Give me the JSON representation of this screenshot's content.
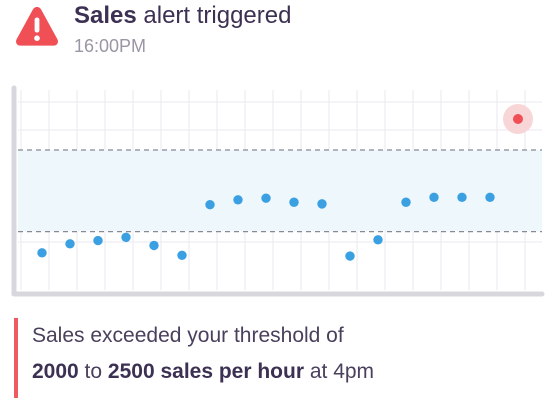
{
  "alert": {
    "title_strong": "Sales",
    "title_rest": " alert triggered",
    "time": "16:00PM",
    "icon": "warning-triangle-icon",
    "icon_color": "#ef4f55"
  },
  "chart_data": {
    "type": "scatter",
    "threshold_min": 2000,
    "threshold_max": 2500,
    "unit": "sales per hour",
    "values": [
      1870,
      1925,
      1945,
      1965,
      1915,
      1855,
      2165,
      2195,
      2205,
      2180,
      2170,
      1850,
      1950,
      2180,
      2210,
      2210,
      2210,
      2690
    ],
    "alert_index": 17,
    "ylim": [
      1630,
      2880
    ],
    "grid": true,
    "colors": {
      "point": "#3aa0e2",
      "alert_point": "#ef4f55",
      "alert_halo": "#f8d6d8",
      "band": "#eef7fc",
      "threshold_line": "#8a8796",
      "grid": "#eaeaf0",
      "axis": "#d8d7de"
    }
  },
  "message": {
    "line1": "Sales exceeded your threshold of",
    "min": "2000",
    "to": " to ",
    "max_phrase": "2500 sales per hour",
    "suffix": " at 4pm"
  }
}
